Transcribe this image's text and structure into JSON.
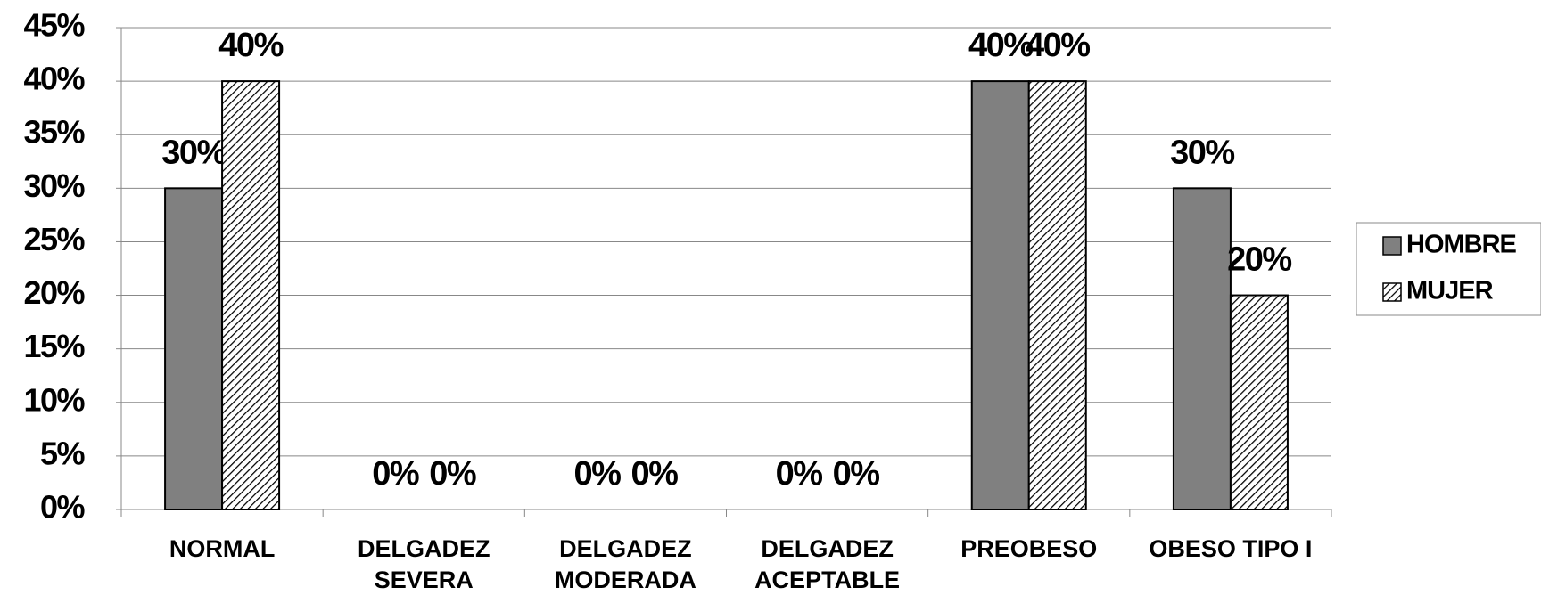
{
  "chart_data": {
    "type": "bar",
    "categories": [
      [
        "NORMAL"
      ],
      [
        "DELGADEZ",
        "SEVERA"
      ],
      [
        "DELGADEZ",
        "MODERADA"
      ],
      [
        "DELGADEZ",
        "ACEPTABLE"
      ],
      [
        "PREOBESO"
      ],
      [
        "OBESO TIPO I"
      ]
    ],
    "series": [
      {
        "name": "HOMBRE",
        "color": "#808080",
        "pattern": "solid",
        "values": [
          30,
          0,
          0,
          0,
          40,
          30
        ],
        "value_labels": [
          "30%",
          "0%",
          "0%",
          "0%",
          "40%",
          "30%"
        ]
      },
      {
        "name": "MUJER",
        "color": "#ffffff",
        "pattern": "hatch",
        "values": [
          40,
          0,
          0,
          0,
          40,
          20
        ],
        "value_labels": [
          "40%",
          "0%",
          "0%",
          "0%",
          "40%",
          "20%"
        ]
      }
    ],
    "ylim": [
      0,
      45
    ],
    "yticks": [
      {
        "value": 0,
        "label": "0%"
      },
      {
        "value": 5,
        "label": "5%"
      },
      {
        "value": 10,
        "label": "10%"
      },
      {
        "value": 15,
        "label": "15%"
      },
      {
        "value": 20,
        "label": "20%"
      },
      {
        "value": 25,
        "label": "25%"
      },
      {
        "value": 30,
        "label": "30%"
      },
      {
        "value": 35,
        "label": "35%"
      },
      {
        "value": 40,
        "label": "40%"
      },
      {
        "value": 45,
        "label": "45%"
      }
    ],
    "grid": true,
    "legend": "right"
  }
}
